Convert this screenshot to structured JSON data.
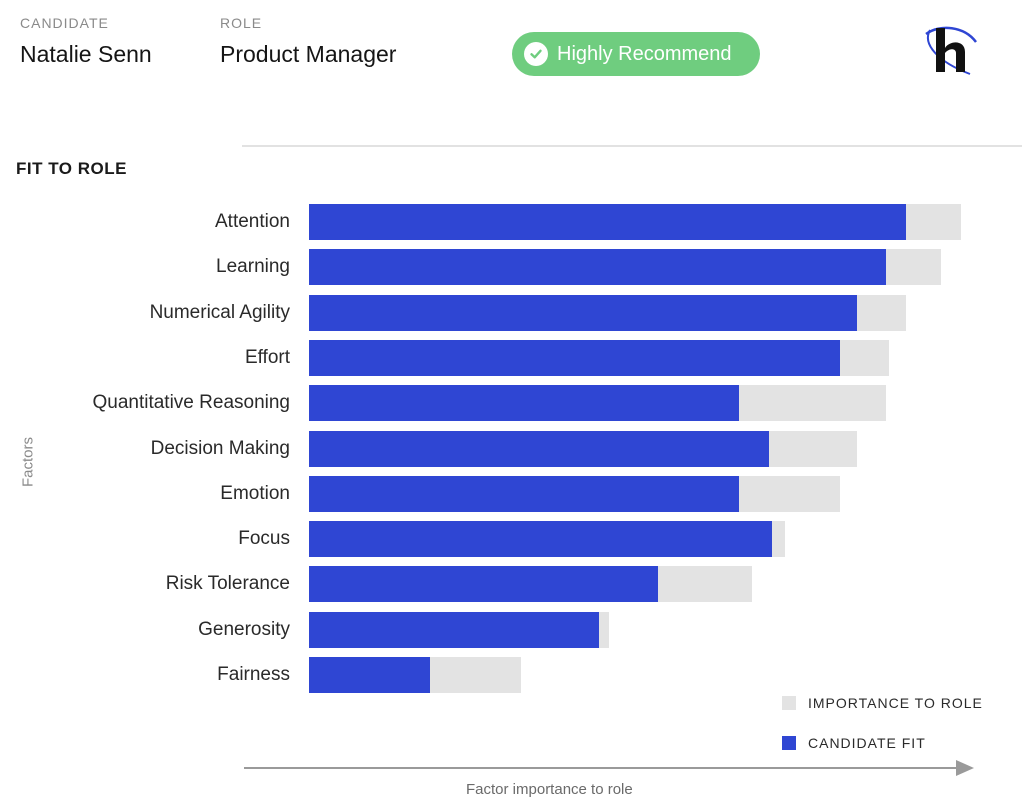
{
  "header": {
    "candidate_caption": "CANDIDATE",
    "candidate_name": "Natalie Senn",
    "role_caption": "ROLE",
    "role_name": "Product Manager",
    "recommendation": "Highly Recommend",
    "recommendation_color": "#6fcd7f"
  },
  "section": {
    "title": "FIT TO ROLE"
  },
  "colors": {
    "candidate_fit": "#2f46d3",
    "importance": "#e3e3e3"
  },
  "chart_data": {
    "type": "bar",
    "orientation": "horizontal",
    "title": "FIT TO ROLE",
    "ylabel": "Factors",
    "xlabel": "Factor importance to role",
    "xlim": [
      0,
      100
    ],
    "categories": [
      "Attention",
      "Learning",
      "Numerical Agility",
      "Effort",
      "Quantitative Reasoning",
      "Decision Making",
      "Emotion",
      "Focus",
      "Risk Tolerance",
      "Generosity",
      "Fairness"
    ],
    "series": [
      {
        "name": "IMPORTANCE TO ROLE",
        "values": [
          100,
          97,
          91.5,
          89,
          88.5,
          84,
          81.5,
          73,
          68,
          46,
          32.5
        ]
      },
      {
        "name": "CANDIDATE FIT",
        "values": [
          91.5,
          88.5,
          84,
          81.5,
          66,
          70.5,
          66,
          71,
          53.5,
          44.5,
          18.5
        ]
      }
    ],
    "legend": [
      {
        "label": "IMPORTANCE TO ROLE",
        "color": "#e3e3e3"
      },
      {
        "label": "CANDIDATE FIT",
        "color": "#2f46d3"
      }
    ],
    "legend_position": "bottom-right"
  }
}
